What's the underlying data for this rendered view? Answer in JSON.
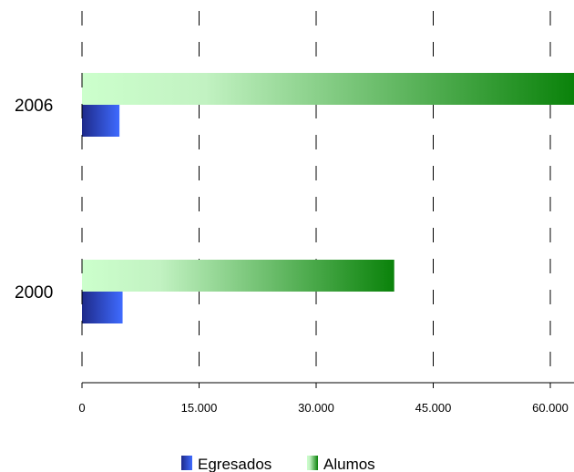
{
  "chart_data": {
    "type": "bar",
    "orientation": "horizontal",
    "categories": [
      "2006",
      "2000"
    ],
    "series": [
      {
        "name": "Egresados",
        "values": [
          4800,
          5200
        ],
        "color": "#3a5cff"
      },
      {
        "name": "Alumos",
        "values": [
          63500,
          40000
        ],
        "color": "#0a8a0a"
      }
    ],
    "x_ticks": [
      0,
      15000,
      30000,
      45000,
      60000
    ],
    "x_tick_labels": [
      "0",
      "15.000",
      "30.000",
      "45.000",
      "60.000"
    ],
    "xlim": [
      0,
      63000
    ],
    "grid": true,
    "legend_position": "bottom-center",
    "title": "",
    "xlabel": "",
    "ylabel": ""
  }
}
